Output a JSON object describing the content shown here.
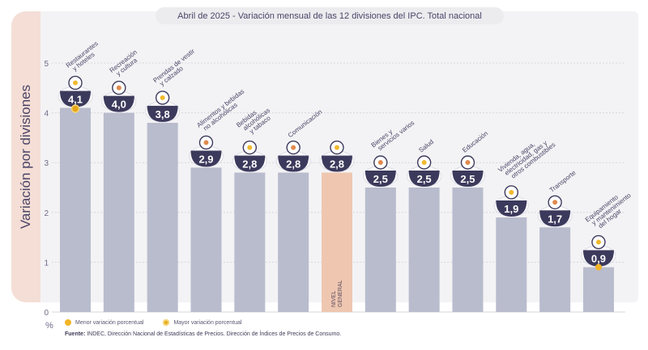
{
  "chart_data": {
    "type": "bar",
    "title": "Abril de 2025 - Variación mensual de las 12 divisiones del IPC. Total nacional",
    "ylabel": "Variación por divisiones",
    "unit": "%",
    "ylim": [
      0,
      5
    ],
    "yticks": [
      "0",
      "1",
      "2",
      "3",
      "4",
      "5"
    ],
    "grid": true,
    "categories": [
      "Restaurantes y hoteles",
      "Recreación y cultura",
      "Prendas de vestir y calzado",
      "Alimentos y bebidas no alcohólicas",
      "Bebidas alcohólicas y tabaco",
      "Comunicación",
      "NIVEL GENERAL",
      "Bienes y servicios varios",
      "Salud",
      "Educación",
      "Vivienda, agua, electricidad, gas y otros combustibles",
      "Transporte",
      "Equipamiento y mantenimiento del hogar"
    ],
    "values": [
      4.1,
      4.0,
      3.8,
      2.9,
      2.8,
      2.8,
      2.8,
      2.5,
      2.5,
      2.5,
      1.9,
      1.7,
      0.9
    ],
    "value_labels": [
      "4,1",
      "4,0",
      "3,8",
      "2,9",
      "2,8",
      "2,8",
      "2,8",
      "2,5",
      "2,5",
      "2,5",
      "1,9",
      "1,7",
      "0,9"
    ],
    "label_lines": [
      [
        "Restaurantes",
        "y hoteles"
      ],
      [
        "Recreación",
        "y cultura"
      ],
      [
        "Prendas de vestir",
        "y calzado"
      ],
      [
        "Alimentos y bebidas",
        "no alcohólicas"
      ],
      [
        "Bebidas",
        "alcohólicas",
        "y tabaco"
      ],
      [
        "Comunicación"
      ],
      [
        "NIVEL",
        "GENERAL"
      ],
      [
        "Bienes y",
        "servicios varios"
      ],
      [
        "Salud"
      ],
      [
        "Educación"
      ],
      [
        "Vivienda, agua,",
        "electricidad, gas y",
        "otros combustibles"
      ],
      [
        "Transporte"
      ],
      [
        "Equipamiento",
        "y mantenimiento",
        "del hogar"
      ]
    ],
    "icons": [
      "restaurant-icon",
      "recreation-icon",
      "clothing-icon",
      "food-icon",
      "drinks-icon",
      "phone-icon",
      "basket-icon",
      "grooming-icon",
      "health-cross-icon",
      "books-icon",
      "lightbulb-icon",
      "bus-icon",
      "appliance-icon"
    ],
    "highlight_index": 6,
    "max_index": 0,
    "min_index": 12,
    "legend": [
      {
        "label": "Menor variación porcentual",
        "color": "#f1b526"
      },
      {
        "label": "Mayor variación porcentual",
        "color": "#e8a81b"
      }
    ],
    "colors": {
      "bar": "#b9bccd",
      "highlight": "#efc7b1",
      "badge": "#3c3a5c",
      "marker": "#f1b526"
    }
  },
  "source": {
    "prefix": "Fuente:",
    "text": "INDEC, Dirección Nacional de Estadísticas de Precios. Dirección de Índices de Precios de Consumo."
  }
}
